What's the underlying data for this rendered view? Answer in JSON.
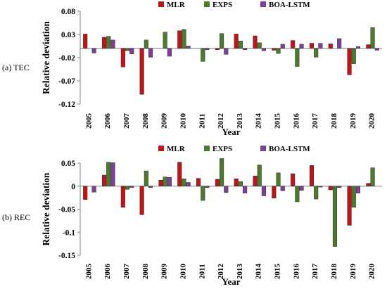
{
  "chart_data": [
    {
      "type": "bar",
      "panel_label": "(a) TEC",
      "xlabel": "Year",
      "ylabel": "Relative deviation",
      "ylim": [
        -0.12,
        0.08
      ],
      "yticks": [
        0.08,
        0.03,
        -0.02,
        -0.07,
        -0.12
      ],
      "ytick_labels": [
        "0.08",
        "0.03",
        "-0.02",
        "-0.07",
        "-0.12"
      ],
      "grid": false,
      "legend_position": "top-center",
      "categories": [
        "2005",
        "2006",
        "2007",
        "2008",
        "2009",
        "2010",
        "2011",
        "2012",
        "2013",
        "2014",
        "2015",
        "2016",
        "2017",
        "2018",
        "2019",
        "2020"
      ],
      "series": [
        {
          "name": "MLR",
          "color": "#c0141b",
          "values": [
            0.031,
            0.024,
            -0.04,
            -0.099,
            0.0,
            0.038,
            0.0,
            -0.003,
            0.031,
            0.027,
            -0.004,
            0.017,
            0.011,
            0.01,
            -0.057,
            0.008
          ]
        },
        {
          "name": "EXPS",
          "color": "#4e7a2e",
          "values": [
            0.0,
            0.026,
            -0.005,
            0.018,
            0.035,
            0.041,
            -0.028,
            0.032,
            0.016,
            0.012,
            -0.011,
            -0.039,
            -0.019,
            0.0,
            -0.033,
            0.045
          ]
        },
        {
          "name": "BOA-LSTM",
          "color": "#7f3f98",
          "values": [
            -0.01,
            0.018,
            -0.012,
            -0.019,
            -0.017,
            0.005,
            -0.003,
            -0.013,
            -0.003,
            -0.005,
            0.009,
            0.009,
            0.011,
            0.021,
            0.004,
            -0.004
          ]
        }
      ]
    },
    {
      "type": "bar",
      "panel_label": "(b) REC",
      "xlabel": "Year",
      "ylabel": "Relative deviation",
      "ylim": [
        -0.15,
        0.05
      ],
      "yticks": [
        0.05,
        0,
        -0.05,
        -0.1,
        -0.15
      ],
      "ytick_labels": [
        "0.05",
        "0",
        "-0.05",
        "-0.1",
        "-0.15"
      ],
      "grid": false,
      "legend_position": "top-center",
      "categories": [
        "2005",
        "2006",
        "2007",
        "2008",
        "2009",
        "2010",
        "2011",
        "2012",
        "2013",
        "2014",
        "2015",
        "2016",
        "2017",
        "2018",
        "2019",
        "2020"
      ],
      "series": [
        {
          "name": "MLR",
          "color": "#c0141b",
          "values": [
            -0.029,
            0.024,
            -0.046,
            -0.062,
            0.013,
            0.052,
            0.017,
            0.015,
            0.016,
            0.022,
            -0.026,
            0.027,
            0.045,
            -0.008,
            -0.085,
            0.006
          ]
        },
        {
          "name": "EXPS",
          "color": "#4e7a2e",
          "values": [
            0.0,
            0.052,
            -0.007,
            0.033,
            0.02,
            0.016,
            -0.031,
            0.06,
            0.01,
            0.046,
            0.029,
            -0.034,
            -0.028,
            -0.131,
            -0.046,
            0.04
          ]
        },
        {
          "name": "BOA-LSTM",
          "color": "#7f3f98",
          "values": [
            -0.013,
            0.051,
            -0.003,
            -0.003,
            0.019,
            0.008,
            -0.003,
            -0.014,
            -0.015,
            -0.021,
            -0.01,
            -0.009,
            -0.002,
            -0.003,
            -0.015,
            0.0
          ]
        }
      ]
    }
  ]
}
